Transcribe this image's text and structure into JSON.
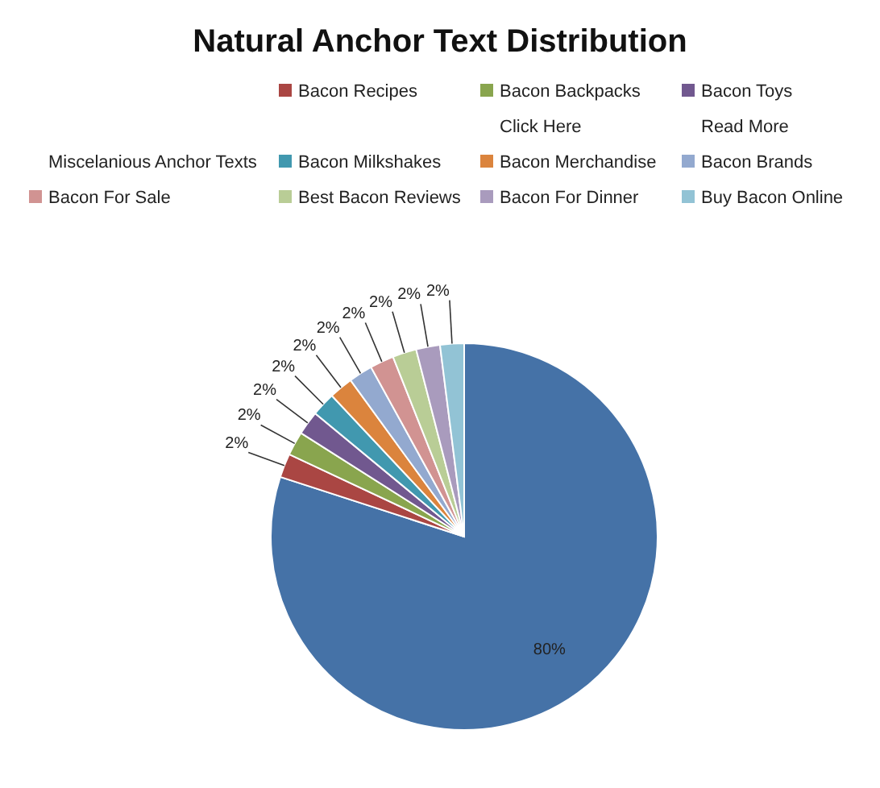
{
  "chart_data": {
    "type": "pie",
    "title": "Natural Anchor Text Distribution",
    "categories": [
      null,
      "Bacon Recipes",
      "Bacon Backpacks",
      "Bacon Toys",
      null,
      null,
      "Click Here",
      "Read More",
      "Miscelanious Anchor Texts",
      "Bacon Milkshakes",
      "Bacon Merchandise",
      "Bacon Brands",
      "Bacon For Sale",
      "Best Bacon Reviews",
      "Bacon For Dinner",
      "Buy Bacon Online"
    ],
    "values": [
      80,
      2,
      2,
      2,
      0,
      0,
      0,
      0,
      0,
      2,
      2,
      2,
      2,
      2,
      2,
      2
    ],
    "value_labels": [
      "80%",
      "2%",
      "2%",
      "2%",
      null,
      null,
      null,
      null,
      null,
      "2%",
      "2%",
      "2%",
      "2%",
      "2%",
      "2%",
      "2%"
    ],
    "colors": [
      "#4572a7",
      "#aa4643",
      "#89a54e",
      "#71588f",
      null,
      null,
      null,
      null,
      null,
      "#4198af",
      "#db843d",
      "#93a9cf",
      "#d19392",
      "#b9cd96",
      "#a99bbd",
      "#92c3d5"
    ],
    "legend": "top"
  }
}
